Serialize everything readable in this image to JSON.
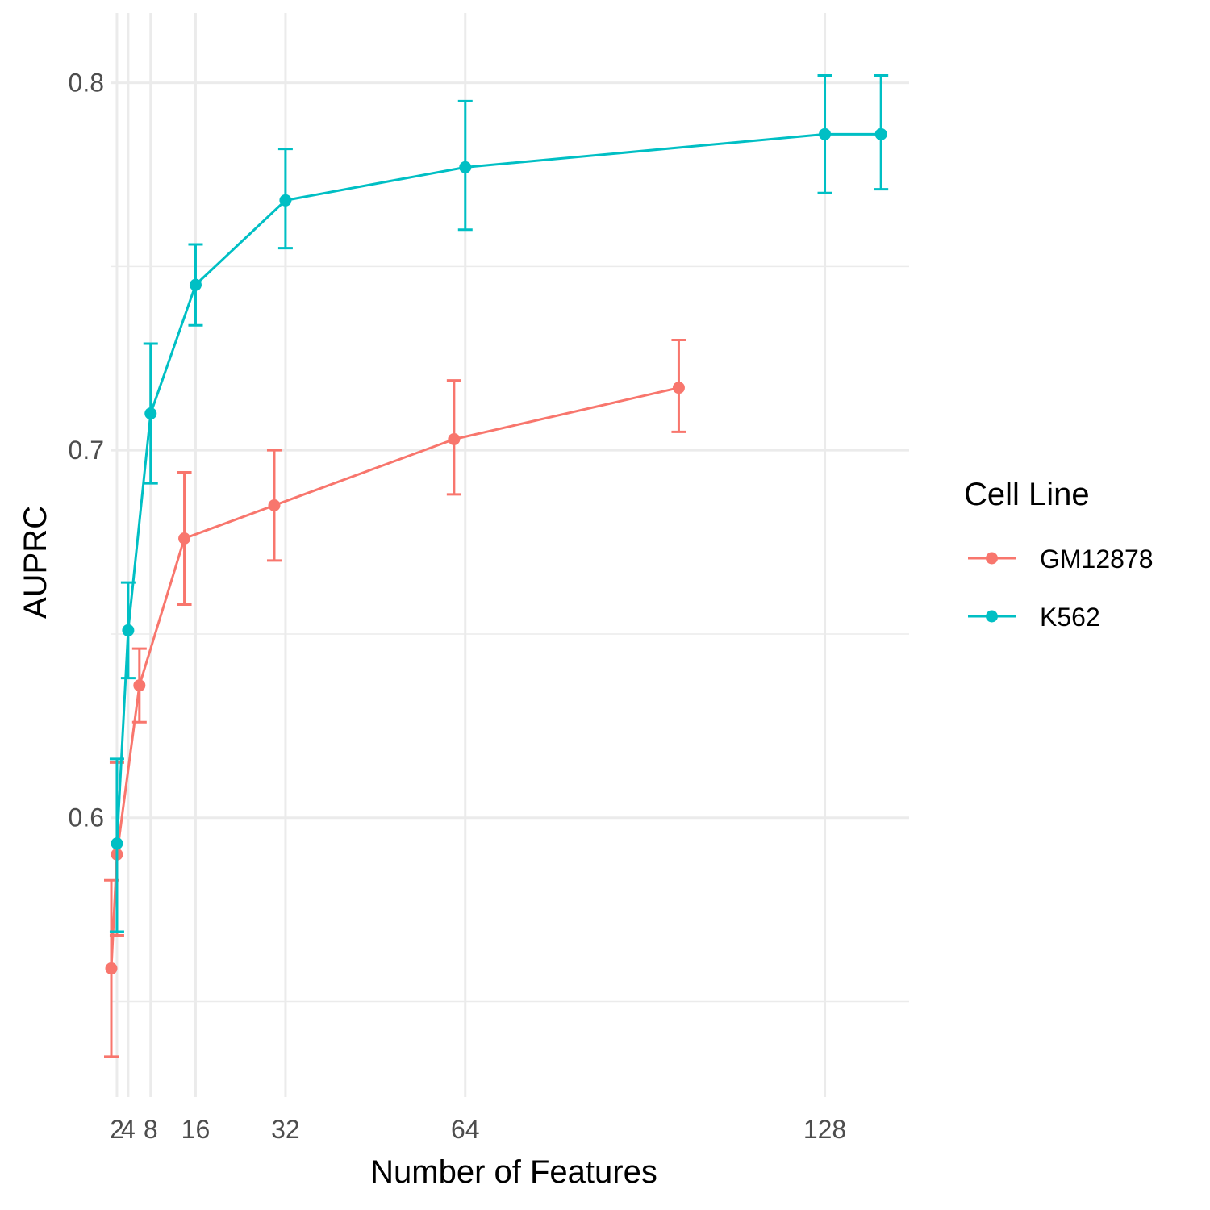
{
  "chart_data": {
    "type": "line",
    "xlabel": "Number of Features",
    "ylabel": "AUPRC",
    "x_ticks": [
      2,
      4,
      8,
      16,
      32,
      64,
      128
    ],
    "y_ticks": [
      0.6,
      0.7,
      0.8
    ],
    "y_minor_ticks": [
      0.55,
      0.65,
      0.75
    ],
    "xlim": [
      1.0,
      143.0
    ],
    "ylim": [
      0.524,
      0.819
    ],
    "grid": true,
    "legend": {
      "title": "Cell Line",
      "position": "right"
    },
    "series": [
      {
        "name": "GM12878",
        "color": "#F8766D",
        "points": [
          {
            "x": 1,
            "y": 0.559,
            "lower": 0.535,
            "upper": 0.583
          },
          {
            "x": 2,
            "y": 0.59,
            "lower": 0.568,
            "upper": 0.615
          },
          {
            "x": 6,
            "y": 0.636,
            "lower": 0.626,
            "upper": 0.646
          },
          {
            "x": 14,
            "y": 0.676,
            "lower": 0.658,
            "upper": 0.694
          },
          {
            "x": 30,
            "y": 0.685,
            "lower": 0.67,
            "upper": 0.7
          },
          {
            "x": 62,
            "y": 0.703,
            "lower": 0.688,
            "upper": 0.719
          },
          {
            "x": 102,
            "y": 0.717,
            "lower": 0.705,
            "upper": 0.73
          }
        ]
      },
      {
        "name": "K562",
        "color": "#00BFC4",
        "points": [
          {
            "x": 2,
            "y": 0.593,
            "lower": 0.569,
            "upper": 0.616
          },
          {
            "x": 4,
            "y": 0.651,
            "lower": 0.638,
            "upper": 0.664
          },
          {
            "x": 8,
            "y": 0.71,
            "lower": 0.691,
            "upper": 0.729
          },
          {
            "x": 16,
            "y": 0.745,
            "lower": 0.734,
            "upper": 0.756
          },
          {
            "x": 32,
            "y": 0.768,
            "lower": 0.755,
            "upper": 0.782
          },
          {
            "x": 64,
            "y": 0.777,
            "lower": 0.76,
            "upper": 0.795
          },
          {
            "x": 128,
            "y": 0.786,
            "lower": 0.77,
            "upper": 0.802
          },
          {
            "x": 138,
            "y": 0.786,
            "lower": 0.771,
            "upper": 0.802
          }
        ]
      }
    ]
  }
}
